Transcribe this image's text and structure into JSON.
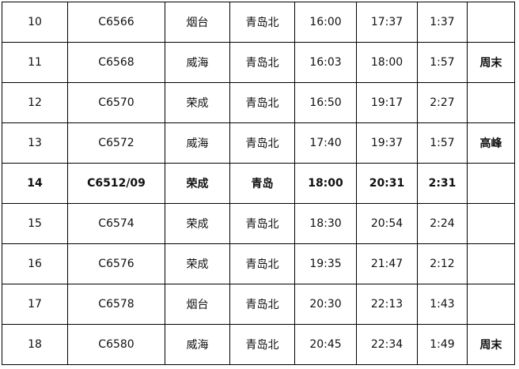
{
  "rows": [
    [
      "10",
      "C6566",
      "烟台",
      "青岛北",
      "16:00",
      "17:37",
      "1:37",
      ""
    ],
    [
      "11",
      "C6568",
      "威海",
      "青岛北",
      "16:03",
      "18:00",
      "1:57",
      "周末"
    ],
    [
      "12",
      "C6570",
      "荣成",
      "青岛北",
      "16:50",
      "19:17",
      "2:27",
      ""
    ],
    [
      "13",
      "C6572",
      "威海",
      "青岛北",
      "17:40",
      "19:37",
      "1:57",
      "高峰"
    ],
    [
      "14",
      "C6512/09",
      "荣成",
      "青岛",
      "18:00",
      "20:31",
      "2:31",
      ""
    ],
    [
      "15",
      "C6574",
      "荣成",
      "青岛北",
      "18:30",
      "20:54",
      "2:24",
      ""
    ],
    [
      "16",
      "C6576",
      "荣成",
      "青岛北",
      "19:35",
      "21:47",
      "2:12",
      ""
    ],
    [
      "17",
      "C6578",
      "烟台",
      "青岛北",
      "20:30",
      "22:13",
      "1:43",
      ""
    ],
    [
      "18",
      "C6580",
      "威海",
      "青岛北",
      "20:45",
      "22:34",
      "1:49",
      "周末"
    ]
  ],
  "bold_row_index": 4
}
